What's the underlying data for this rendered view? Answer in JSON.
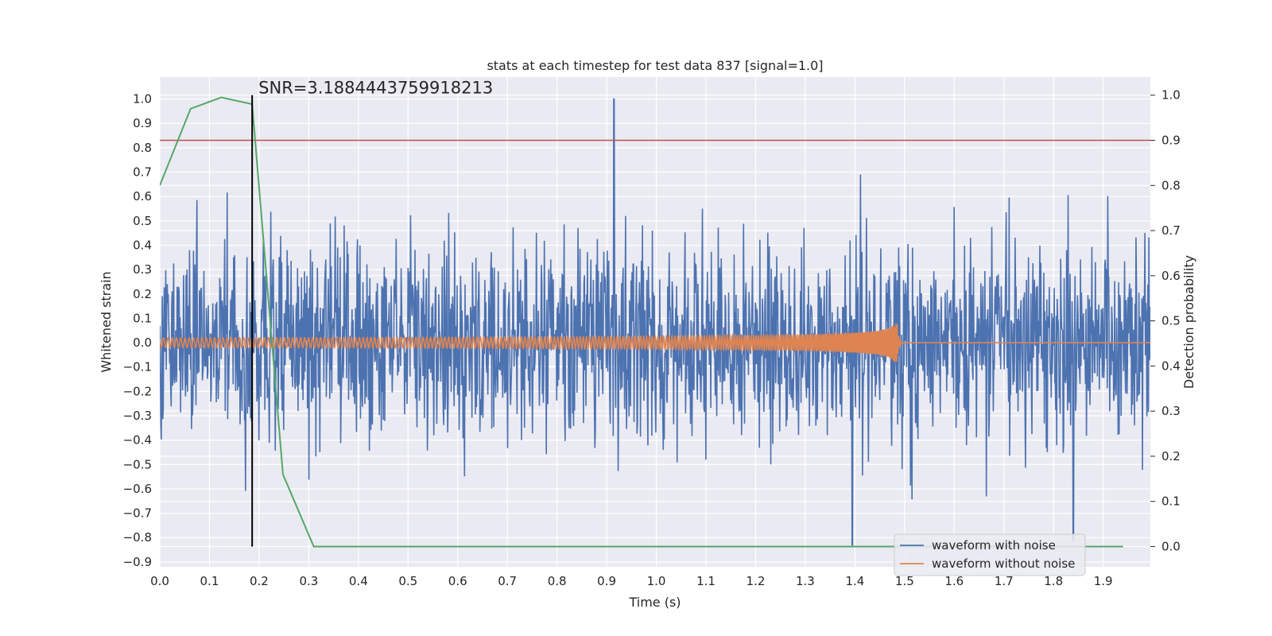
{
  "chart_data": {
    "type": "line",
    "title": "stats at each timestep for test data 837 [signal=1.0]",
    "xlabel": "Time (s)",
    "ylabel": "Whitened strain",
    "ylabel_right": "Detection probability",
    "xlim": [
      0.0,
      1.995
    ],
    "ylim": [
      -0.92,
      1.09
    ],
    "ylim_right": [
      -0.045,
      1.04
    ],
    "x_ticks": [
      "0.0",
      "0.1",
      "0.2",
      "0.3",
      "0.4",
      "0.5",
      "0.6",
      "0.7",
      "0.8",
      "0.9",
      "1.0",
      "1.1",
      "1.2",
      "1.3",
      "1.4",
      "1.5",
      "1.6",
      "1.7",
      "1.8",
      "1.9"
    ],
    "y_ticks": [
      "1.0",
      "0.9",
      "0.8",
      "0.7",
      "0.6",
      "0.5",
      "0.4",
      "0.3",
      "0.2",
      "0.1",
      "0.0",
      "−0.1",
      "−0.2",
      "−0.3",
      "−0.4",
      "−0.5",
      "−0.6",
      "−0.7",
      "−0.8",
      "−0.9"
    ],
    "y_ticks_right": [
      "1.0",
      "0.9",
      "0.8",
      "0.7",
      "0.6",
      "0.5",
      "0.4",
      "0.3",
      "0.2",
      "0.1",
      "0.0"
    ],
    "annotation": {
      "text": "SNR=3.1884443759918213",
      "marker_time": 0.186
    },
    "threshold": {
      "axis": "right",
      "value": 0.9,
      "color": "#c44e52"
    },
    "series": [
      {
        "name": "waveform with noise",
        "axis": "left",
        "color": "#4c72b0",
        "generated": true,
        "n_points": 2000,
        "std": 0.2,
        "min": -0.83,
        "max": 1.0
      },
      {
        "name": "waveform without noise",
        "axis": "left",
        "color": "#dd8452",
        "generated": true,
        "chirp_end_time": 1.485,
        "amplitude_start": 0.02,
        "amplitude_end": 0.08
      },
      {
        "name": "detection probability",
        "axis": "right",
        "color": "#55a868",
        "x": [
          0.0,
          0.062,
          0.124,
          0.186,
          0.248,
          0.31,
          0.372,
          0.434,
          0.496,
          0.558,
          0.62,
          0.682,
          0.744,
          0.806,
          0.868,
          0.93,
          0.992,
          1.054,
          1.116,
          1.178,
          1.24,
          1.302,
          1.364,
          1.426,
          1.488,
          1.55,
          1.612,
          1.674,
          1.736,
          1.798,
          1.86,
          1.94
        ],
        "values": [
          0.8,
          0.97,
          0.995,
          0.98,
          0.16,
          0.0,
          0.0,
          0.0,
          0.0,
          0.0,
          0.0,
          0.0,
          0.0,
          0.0,
          0.0,
          0.0,
          0.0,
          0.0,
          0.0,
          0.0,
          0.0,
          0.0,
          0.0,
          0.0,
          0.0,
          0.0,
          0.0,
          0.0,
          0.0,
          0.0,
          0.0,
          0.0
        ]
      }
    ],
    "legend": {
      "placement": "bottom-right",
      "entries": [
        "waveform with noise",
        "waveform without noise"
      ]
    },
    "colors": {
      "background": "#eaeaf2",
      "grid": "#ffffff",
      "marker_line": "#000000"
    }
  }
}
